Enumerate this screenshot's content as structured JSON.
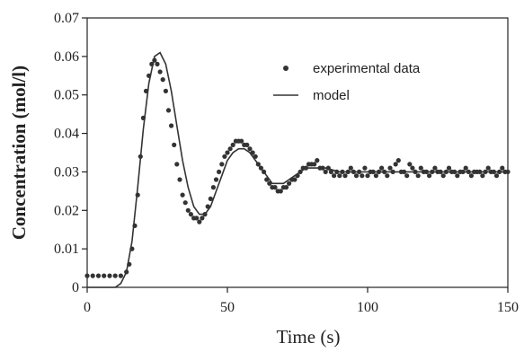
{
  "chart_data": {
    "type": "line",
    "title": "",
    "xlabel": "Time (s)",
    "ylabel": "Concentration (mol/l)",
    "xlim": [
      0,
      150
    ],
    "ylim": [
      0,
      0.07
    ],
    "xticks": [
      "0",
      "50",
      "100",
      "150"
    ],
    "yticks": [
      "0",
      "0.01",
      "0.02",
      "0.03",
      "0.04",
      "0.05",
      "0.06",
      "0.07"
    ],
    "grid": false,
    "legend_position": "top-right",
    "series": [
      {
        "name": "experimental data",
        "kind": "scatter",
        "color": "#333333",
        "points": [
          [
            0,
            0.003
          ],
          [
            2,
            0.003
          ],
          [
            4,
            0.003
          ],
          [
            6,
            0.003
          ],
          [
            8,
            0.003
          ],
          [
            10,
            0.003
          ],
          [
            12,
            0.003
          ],
          [
            14,
            0.004
          ],
          [
            15,
            0.006
          ],
          [
            16,
            0.01
          ],
          [
            17,
            0.016
          ],
          [
            18,
            0.024
          ],
          [
            19,
            0.034
          ],
          [
            20,
            0.044
          ],
          [
            21,
            0.051
          ],
          [
            22,
            0.055
          ],
          [
            23,
            0.058
          ],
          [
            24,
            0.059
          ],
          [
            25,
            0.058
          ],
          [
            26,
            0.056
          ],
          [
            27,
            0.054
          ],
          [
            28,
            0.051
          ],
          [
            29,
            0.046
          ],
          [
            30,
            0.042
          ],
          [
            31,
            0.037
          ],
          [
            32,
            0.032
          ],
          [
            33,
            0.028
          ],
          [
            34,
            0.024
          ],
          [
            35,
            0.022
          ],
          [
            36,
            0.02
          ],
          [
            37,
            0.019
          ],
          [
            38,
            0.018
          ],
          [
            39,
            0.018
          ],
          [
            40,
            0.017
          ],
          [
            41,
            0.018
          ],
          [
            42,
            0.019
          ],
          [
            43,
            0.021
          ],
          [
            44,
            0.023
          ],
          [
            45,
            0.026
          ],
          [
            46,
            0.028
          ],
          [
            47,
            0.03
          ],
          [
            48,
            0.032
          ],
          [
            49,
            0.034
          ],
          [
            50,
            0.035
          ],
          [
            51,
            0.036
          ],
          [
            52,
            0.037
          ],
          [
            53,
            0.038
          ],
          [
            54,
            0.038
          ],
          [
            55,
            0.038
          ],
          [
            56,
            0.037
          ],
          [
            57,
            0.037
          ],
          [
            58,
            0.036
          ],
          [
            59,
            0.035
          ],
          [
            60,
            0.034
          ],
          [
            61,
            0.032
          ],
          [
            62,
            0.031
          ],
          [
            63,
            0.03
          ],
          [
            64,
            0.028
          ],
          [
            65,
            0.027
          ],
          [
            66,
            0.026
          ],
          [
            67,
            0.026
          ],
          [
            68,
            0.025
          ],
          [
            69,
            0.025
          ],
          [
            70,
            0.026
          ],
          [
            71,
            0.026
          ],
          [
            72,
            0.027
          ],
          [
            73,
            0.028
          ],
          [
            74,
            0.028
          ],
          [
            75,
            0.029
          ],
          [
            76,
            0.03
          ],
          [
            77,
            0.031
          ],
          [
            78,
            0.031
          ],
          [
            79,
            0.032
          ],
          [
            80,
            0.032
          ],
          [
            81,
            0.032
          ],
          [
            82,
            0.033
          ],
          [
            83,
            0.031
          ],
          [
            84,
            0.031
          ],
          [
            85,
            0.03
          ],
          [
            86,
            0.031
          ],
          [
            87,
            0.03
          ],
          [
            88,
            0.029
          ],
          [
            89,
            0.03
          ],
          [
            90,
            0.029
          ],
          [
            91,
            0.03
          ],
          [
            92,
            0.029
          ],
          [
            93,
            0.03
          ],
          [
            94,
            0.031
          ],
          [
            95,
            0.03
          ],
          [
            96,
            0.029
          ],
          [
            97,
            0.03
          ],
          [
            98,
            0.029
          ],
          [
            99,
            0.031
          ],
          [
            100,
            0.029
          ],
          [
            101,
            0.03
          ],
          [
            102,
            0.03
          ],
          [
            103,
            0.029
          ],
          [
            104,
            0.03
          ],
          [
            105,
            0.031
          ],
          [
            106,
            0.03
          ],
          [
            107,
            0.029
          ],
          [
            108,
            0.031
          ],
          [
            109,
            0.03
          ],
          [
            110,
            0.032
          ],
          [
            111,
            0.033
          ],
          [
            112,
            0.03
          ],
          [
            113,
            0.03
          ],
          [
            114,
            0.029
          ],
          [
            115,
            0.032
          ],
          [
            116,
            0.031
          ],
          [
            117,
            0.03
          ],
          [
            118,
            0.029
          ],
          [
            119,
            0.031
          ],
          [
            120,
            0.03
          ],
          [
            121,
            0.03
          ],
          [
            122,
            0.029
          ],
          [
            123,
            0.03
          ],
          [
            124,
            0.031
          ],
          [
            125,
            0.03
          ],
          [
            126,
            0.03
          ],
          [
            127,
            0.029
          ],
          [
            128,
            0.03
          ],
          [
            129,
            0.031
          ],
          [
            130,
            0.03
          ],
          [
            131,
            0.03
          ],
          [
            132,
            0.029
          ],
          [
            133,
            0.03
          ],
          [
            134,
            0.03
          ],
          [
            135,
            0.031
          ],
          [
            136,
            0.03
          ],
          [
            137,
            0.029
          ],
          [
            138,
            0.03
          ],
          [
            139,
            0.03
          ],
          [
            140,
            0.03
          ],
          [
            141,
            0.029
          ],
          [
            142,
            0.03
          ],
          [
            143,
            0.031
          ],
          [
            144,
            0.03
          ],
          [
            145,
            0.03
          ],
          [
            146,
            0.029
          ],
          [
            147,
            0.03
          ],
          [
            148,
            0.031
          ],
          [
            149,
            0.03
          ],
          [
            150,
            0.03
          ]
        ]
      },
      {
        "name": "model",
        "kind": "line",
        "color": "#333333",
        "points": [
          [
            0,
            0.0
          ],
          [
            10,
            0.0
          ],
          [
            12,
            0.001
          ],
          [
            14,
            0.004
          ],
          [
            16,
            0.012
          ],
          [
            18,
            0.026
          ],
          [
            20,
            0.041
          ],
          [
            22,
            0.053
          ],
          [
            24,
            0.06
          ],
          [
            26,
            0.061
          ],
          [
            28,
            0.058
          ],
          [
            30,
            0.051
          ],
          [
            32,
            0.042
          ],
          [
            34,
            0.033
          ],
          [
            36,
            0.026
          ],
          [
            38,
            0.021
          ],
          [
            40,
            0.019
          ],
          [
            42,
            0.019
          ],
          [
            44,
            0.021
          ],
          [
            46,
            0.025
          ],
          [
            48,
            0.029
          ],
          [
            50,
            0.033
          ],
          [
            52,
            0.035
          ],
          [
            54,
            0.036
          ],
          [
            56,
            0.036
          ],
          [
            58,
            0.035
          ],
          [
            60,
            0.033
          ],
          [
            62,
            0.031
          ],
          [
            64,
            0.029
          ],
          [
            66,
            0.027
          ],
          [
            68,
            0.027
          ],
          [
            70,
            0.027
          ],
          [
            72,
            0.028
          ],
          [
            74,
            0.029
          ],
          [
            76,
            0.03
          ],
          [
            78,
            0.031
          ],
          [
            80,
            0.031
          ],
          [
            85,
            0.031
          ],
          [
            90,
            0.03
          ],
          [
            95,
            0.03
          ],
          [
            100,
            0.03
          ],
          [
            110,
            0.03
          ],
          [
            120,
            0.03
          ],
          [
            130,
            0.03
          ],
          [
            140,
            0.03
          ],
          [
            150,
            0.03
          ]
        ]
      }
    ]
  }
}
